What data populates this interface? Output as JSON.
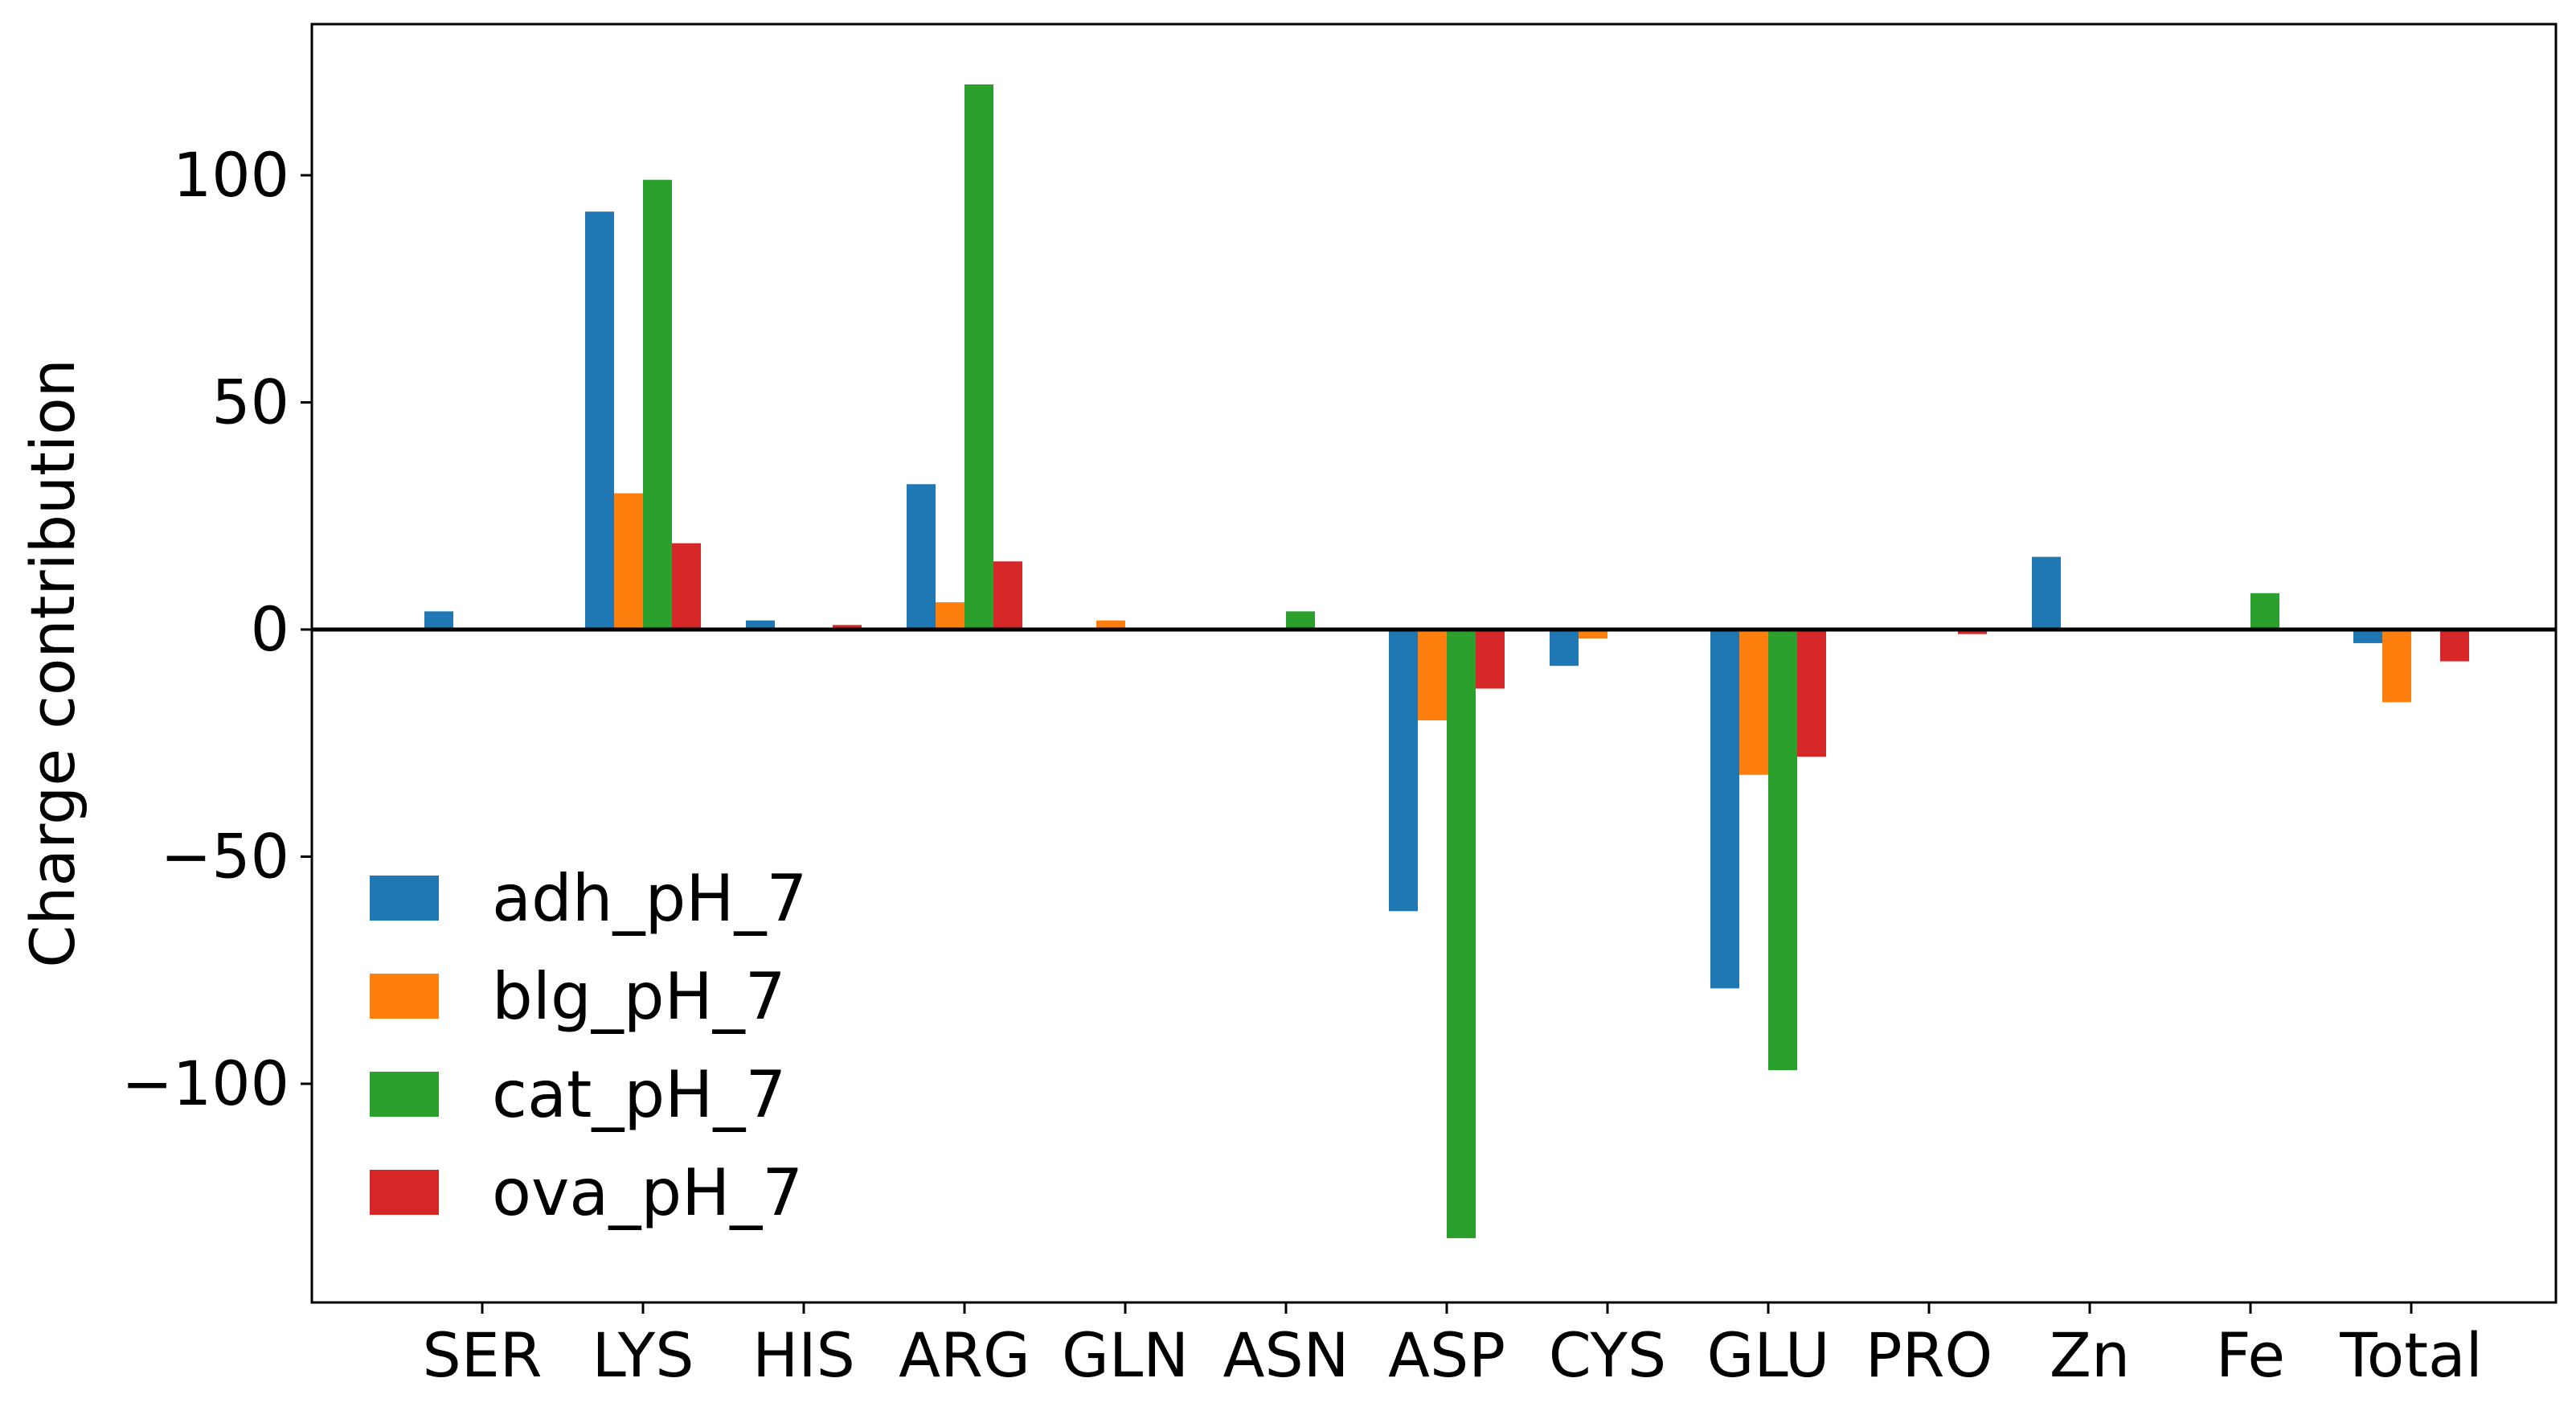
{
  "chart_data": {
    "type": "bar",
    "title": "",
    "xlabel": "",
    "ylabel": "Charge contribution",
    "categories": [
      "SER",
      "LYS",
      "HIS",
      "ARG",
      "GLN",
      "ASN",
      "ASP",
      "CYS",
      "GLU",
      "PRO",
      "Zn",
      "Fe",
      "Total"
    ],
    "ylim": [
      -148,
      133
    ],
    "yticks": [
      100,
      50,
      0,
      -50,
      -100
    ],
    "ytick_labels": [
      "100",
      "50",
      "0",
      "−50",
      "−100"
    ],
    "grid": false,
    "legend_position": "lower-left",
    "series": [
      {
        "name": "adh_pH_7",
        "color": "#1f77b4",
        "values": [
          4,
          92,
          2,
          32,
          0,
          0,
          -62,
          -8,
          -79,
          0,
          16,
          0,
          -3
        ]
      },
      {
        "name": "blg_pH_7",
        "color": "#ff7f0e",
        "values": [
          0,
          30,
          0,
          6,
          2,
          0,
          -20,
          -2,
          -32,
          0,
          0,
          0,
          -16
        ]
      },
      {
        "name": "cat_pH_7",
        "color": "#2ca02c",
        "values": [
          0,
          99,
          0,
          120,
          0,
          4,
          -134,
          0,
          -97,
          0,
          0,
          8,
          0
        ]
      },
      {
        "name": "ova_pH_7",
        "color": "#d62728",
        "values": [
          0,
          19,
          1,
          15,
          0,
          0,
          -13,
          0,
          -28,
          -1,
          0,
          0,
          -7
        ]
      }
    ]
  }
}
